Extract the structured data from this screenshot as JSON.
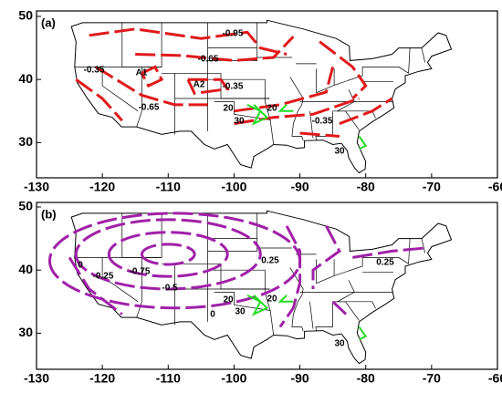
{
  "panels": [
    {
      "label": "(a)",
      "xlim": [
        -130,
        -60
      ],
      "ylim": [
        25,
        50
      ],
      "xticks": [
        -130,
        -120,
        -110,
        -100,
        -90,
        -80,
        -70,
        -60
      ],
      "yticks": [
        30,
        40,
        50
      ],
      "contour_labels": [
        "-0.95",
        "-0.65",
        "-0.35",
        "A1",
        "A2",
        "-0.35",
        "-0.65",
        "-0.35",
        "20",
        "30",
        "20",
        "30"
      ]
    },
    {
      "label": "(b)",
      "xlim": [
        -130,
        -60
      ],
      "ylim": [
        25,
        50
      ],
      "xticks": [
        -130,
        -120,
        -110,
        -100,
        -90,
        -80,
        -70,
        -60
      ],
      "yticks": [
        30,
        40,
        50
      ],
      "contour_labels": [
        "0",
        "-0.25",
        "-0.75",
        "-0.5",
        "0",
        "0.25",
        "0.25",
        "20",
        "30",
        "20",
        "30"
      ]
    }
  ]
}
